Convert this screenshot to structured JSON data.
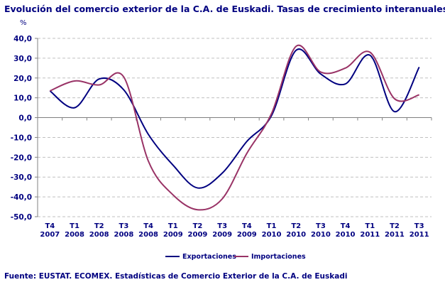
{
  "chart_data": {
    "type": "line",
    "title": "Evolución del comercio exterior de la C.A. de Euskadi. Tasas de crecimiento interanuales",
    "ylabel": "%",
    "xlabel": "",
    "ylim": [
      -50,
      40
    ],
    "yticks": [
      "40,0",
      "30,0",
      "20,0",
      "10,0",
      "0,0",
      "-10,0",
      "-20,0",
      "-30,0",
      "-40,0",
      "-50,0"
    ],
    "grid": true,
    "legend": "bottom",
    "categories": [
      [
        "T4",
        "2007"
      ],
      [
        "T1",
        "2008"
      ],
      [
        "T2",
        "2008"
      ],
      [
        "T3",
        "2008"
      ],
      [
        "T4",
        "2008"
      ],
      [
        "T1",
        "2009"
      ],
      [
        "T2",
        "2009"
      ],
      [
        "T3",
        "2009"
      ],
      [
        "T4",
        "2009"
      ],
      [
        "T1",
        "2010"
      ],
      [
        "T2",
        "2010"
      ],
      [
        "T3",
        "2010"
      ],
      [
        "T4",
        "2010"
      ],
      [
        "T1",
        "2011"
      ],
      [
        "T2",
        "2011"
      ],
      [
        "T3",
        "2011"
      ]
    ],
    "series": [
      {
        "name": "Exportaciones",
        "color": "#000080",
        "values": [
          13.5,
          5,
          19.5,
          14,
          -8.5,
          -24,
          -35.5,
          -28,
          -12,
          1,
          34,
          22,
          17,
          31.5,
          3,
          25.5
        ]
      },
      {
        "name": "Importaciones",
        "color": "#993366",
        "values": [
          13.5,
          18.5,
          16.5,
          20.5,
          -22,
          -39,
          -46.5,
          -41,
          -18,
          2,
          36,
          23,
          25,
          33,
          9.5,
          11.5
        ]
      }
    ]
  },
  "footer": "Fuente: EUSTAT. ECOMEX. Estadísticas de Comercio Exterior de la C.A. de Euskadi"
}
